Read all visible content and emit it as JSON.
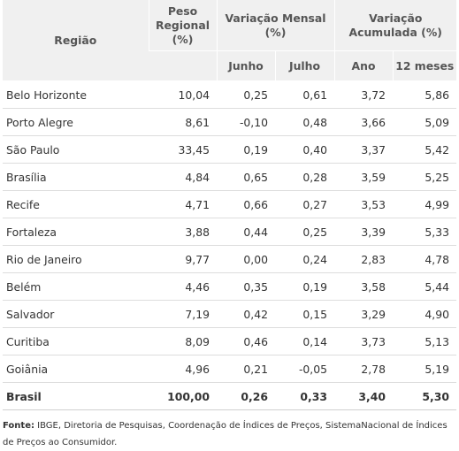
{
  "headers": {
    "regiao": "Região",
    "peso": "Peso Regional (%)",
    "var_mensal": "Variação Mensal (%)",
    "var_acum": "Variação Acumulada (%)",
    "junho": "Junho",
    "julho": "Julho",
    "ano": "Ano",
    "meses12": "12 meses"
  },
  "rows": [
    {
      "regiao": "Belo Horizonte",
      "peso": "10,04",
      "junho": "0,25",
      "julho": "0,61",
      "ano": "3,72",
      "meses12": "5,86"
    },
    {
      "regiao": "Porto Alegre",
      "peso": "8,61",
      "junho": "-0,10",
      "julho": "0,48",
      "ano": "3,66",
      "meses12": "5,09"
    },
    {
      "regiao": "São Paulo",
      "peso": "33,45",
      "junho": "0,19",
      "julho": "0,40",
      "ano": "3,37",
      "meses12": "5,42"
    },
    {
      "regiao": "Brasília",
      "peso": "4,84",
      "junho": "0,65",
      "julho": "0,28",
      "ano": "3,59",
      "meses12": "5,25"
    },
    {
      "regiao": "Recife",
      "peso": "4,71",
      "junho": "0,66",
      "julho": "0,27",
      "ano": "3,53",
      "meses12": "4,99"
    },
    {
      "regiao": "Fortaleza",
      "peso": "3,88",
      "junho": "0,44",
      "julho": "0,25",
      "ano": "3,39",
      "meses12": "5,33"
    },
    {
      "regiao": "Rio de Janeiro",
      "peso": "9,77",
      "junho": "0,00",
      "julho": "0,24",
      "ano": "2,83",
      "meses12": "4,78"
    },
    {
      "regiao": "Belém",
      "peso": "4,46",
      "junho": "0,35",
      "julho": "0,19",
      "ano": "3,58",
      "meses12": "5,44"
    },
    {
      "regiao": "Salvador",
      "peso": "7,19",
      "junho": "0,42",
      "julho": "0,15",
      "ano": "3,29",
      "meses12": "4,90"
    },
    {
      "regiao": "Curitiba",
      "peso": "8,09",
      "junho": "0,46",
      "julho": "0,14",
      "ano": "3,73",
      "meses12": "5,13"
    },
    {
      "regiao": "Goiânia",
      "peso": "4,96",
      "junho": "0,21",
      "julho": "-0,05",
      "ano": "2,78",
      "meses12": "5,19"
    }
  ],
  "total": {
    "regiao": "Brasil",
    "peso": "100,00",
    "junho": "0,26",
    "julho": "0,33",
    "ano": "3,40",
    "meses12": "5,30"
  },
  "fonte": {
    "label": "Fonte:",
    "text": "IBGE, Diretoria de Pesquisas, Coordenação de Índices de Preços, SistemaNacional de Índices de Preços ao Consumidor."
  }
}
